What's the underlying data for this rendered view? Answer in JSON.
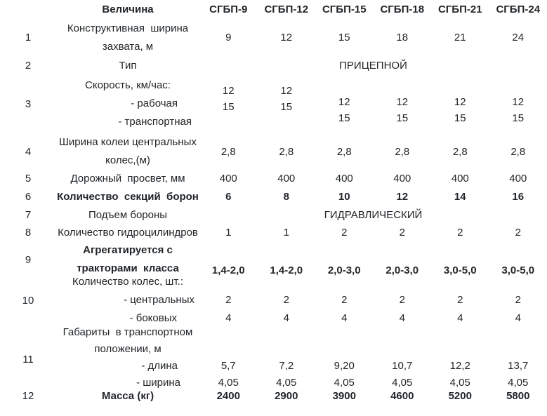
{
  "header": {
    "param_label": "Величина",
    "models": [
      "СГБП-9",
      "СГБП-12",
      "СГБП-15",
      "СГБП-18",
      "СГБП-21",
      "СГБП-24"
    ]
  },
  "rows": {
    "r1": {
      "num": "1",
      "line1": "Конструктивная  ширина",
      "line2": "захвата, м",
      "values": [
        "9",
        "12",
        "15",
        "18",
        "21",
        "24"
      ]
    },
    "r2": {
      "num": "2",
      "label": "Тип",
      "value": "ПРИЦЕПНОЙ"
    },
    "r3": {
      "num": "3",
      "line1": "Скорость, км/час:",
      "line2": "- рабочая",
      "line3": "- транспортная",
      "values": [
        [
          "12",
          "15"
        ],
        [
          "12",
          "15"
        ],
        [
          "12",
          "15"
        ],
        [
          "12",
          "15"
        ],
        [
          "12",
          "15"
        ],
        [
          "12",
          "15"
        ]
      ]
    },
    "r4": {
      "num": "4",
      "line1": "Ширина колеи центральных",
      "line2": "колес,(м)",
      "values": [
        "2,8",
        "2,8",
        "2,8",
        "2,8",
        "2,8",
        "2,8"
      ]
    },
    "r5": {
      "num": "5",
      "label": "Дорожный  просвет, мм",
      "values": [
        "400",
        "400",
        "400",
        "400",
        "400",
        "400"
      ]
    },
    "r6": {
      "num": "6",
      "label": "Количество  секций  борон",
      "values": [
        "6",
        "8",
        "10",
        "12",
        "14",
        "16"
      ]
    },
    "r7": {
      "num": "7",
      "label": "Подъем бороны",
      "value": "ГИДРАВЛИЧЕСКИЙ"
    },
    "r8": {
      "num": "8",
      "label": "Количество гидроцилиндров",
      "values": [
        "1",
        "1",
        "2",
        "2",
        "2",
        "2"
      ]
    },
    "r9": {
      "num": "9",
      "line1": "Агрегатируется с",
      "line2": "тракторами  класса",
      "values": [
        "1,4-2,0",
        "1,4-2,0",
        "2,0-3,0",
        "2,0-3,0",
        "3,0-5,0",
        "3,0-5,0"
      ]
    },
    "r10": {
      "num": "10",
      "line1": "Количество колес, шт.:",
      "line2": "- центральных",
      "line3": "- боковых",
      "central": [
        "2",
        "2",
        "2",
        "2",
        "2",
        "2"
      ],
      "side": [
        "4",
        "4",
        "4",
        "4",
        "4",
        "4"
      ]
    },
    "r11": {
      "num": "11",
      "line1": "Габариты  в транспортном",
      "line2": "положении, м",
      "line3": "- длина",
      "line4": "- ширина",
      "length": [
        "5,7",
        "7,2",
        "9,20",
        "10,7",
        "12,2",
        "13,7"
      ],
      "width": [
        "4,05",
        "4,05",
        "4,05",
        "4,05",
        "4,05",
        "4,05"
      ]
    },
    "r12": {
      "num": "12",
      "label": "Масса (кг)",
      "values": [
        "2400",
        "2900",
        "3900",
        "4600",
        "5200",
        "5800"
      ]
    }
  }
}
